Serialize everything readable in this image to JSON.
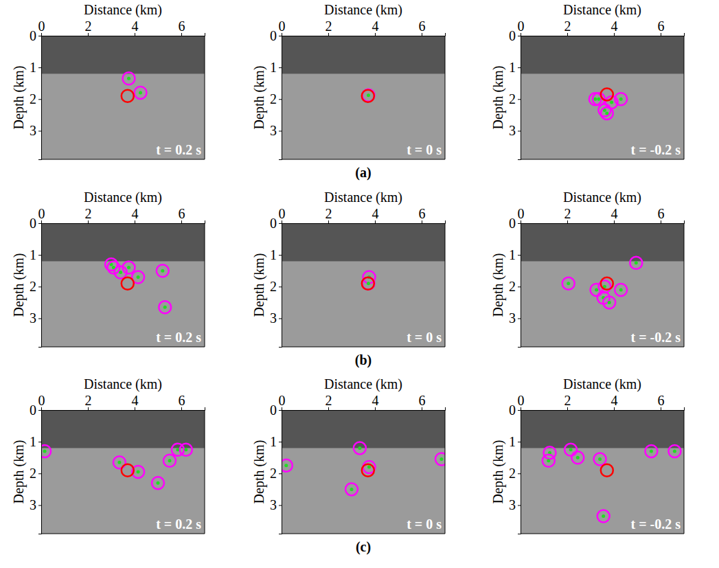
{
  "chart_data": [
    {
      "type": "scatter",
      "xlabel": "Distance (km)",
      "ylabel": "Depth (km)",
      "xlim": [
        0,
        7
      ],
      "ylim": [
        0,
        3.9
      ],
      "xticks": [
        0,
        2,
        4,
        6
      ],
      "yticks": [
        0,
        1,
        2,
        3
      ],
      "mute_depth": 1.2,
      "annotation": "t = 0.2 s",
      "series": [
        {
          "color": "#ff00ff",
          "marker": "ring-dot",
          "x": [
            3.75,
            4.25
          ],
          "y": [
            1.35,
            1.8
          ]
        },
        {
          "color": "#ff0000",
          "marker": "ring",
          "x": [
            3.7
          ],
          "y": [
            1.9
          ]
        }
      ]
    },
    {
      "type": "scatter",
      "xlabel": "Distance (km)",
      "ylabel": "Depth (km)",
      "xlim": [
        0,
        7
      ],
      "ylim": [
        0,
        3.9
      ],
      "xticks": [
        0,
        2,
        4,
        6
      ],
      "yticks": [
        0,
        1,
        2,
        3
      ],
      "mute_depth": 1.2,
      "annotation": "t = 0 s",
      "caption": "(a)",
      "series": [
        {
          "color": "#ff00ff",
          "marker": "ring-dot",
          "x": [
            3.72
          ],
          "y": [
            1.88
          ]
        },
        {
          "color": "#ff0000",
          "marker": "ring",
          "x": [
            3.7
          ],
          "y": [
            1.9
          ]
        }
      ]
    },
    {
      "type": "scatter",
      "xlabel": "Distance (km)",
      "ylabel": "Depth (km)",
      "xlim": [
        0,
        7
      ],
      "ylim": [
        0,
        3.9
      ],
      "xticks": [
        0,
        2,
        4,
        6
      ],
      "yticks": [
        0,
        1,
        2,
        3
      ],
      "mute_depth": 1.2,
      "annotation": "t = -0.2 s",
      "series": [
        {
          "color": "#ff00ff",
          "marker": "ring-dot",
          "x": [
            3.2,
            3.35,
            3.6,
            3.7,
            4.3,
            3.9
          ],
          "y": [
            2.0,
            2.0,
            2.35,
            2.45,
            2.0,
            2.1
          ]
        },
        {
          "color": "#ff0000",
          "marker": "ring",
          "x": [
            3.7
          ],
          "y": [
            1.85
          ]
        }
      ]
    },
    {
      "type": "scatter",
      "xlabel": "Distance (km)",
      "ylabel": "Depth (km)",
      "xlim": [
        0,
        7
      ],
      "ylim": [
        0,
        3.9
      ],
      "xticks": [
        0,
        2,
        4,
        6
      ],
      "yticks": [
        0,
        1,
        2,
        3
      ],
      "mute_depth": 1.2,
      "annotation": "t = 0.2 s",
      "series": [
        {
          "color": "#ff00ff",
          "marker": "ring-dot",
          "x": [
            3.0,
            3.1,
            3.4,
            3.75,
            4.15,
            5.2,
            5.3
          ],
          "y": [
            1.3,
            1.4,
            1.55,
            1.4,
            1.7,
            1.5,
            2.65
          ]
        },
        {
          "color": "#ff0000",
          "marker": "ring",
          "x": [
            3.7
          ],
          "y": [
            1.9
          ]
        }
      ]
    },
    {
      "type": "scatter",
      "xlabel": "Distance (km)",
      "ylabel": "Depth (km)",
      "xlim": [
        0,
        7
      ],
      "ylim": [
        0,
        3.9
      ],
      "xticks": [
        0,
        2,
        4,
        6
      ],
      "yticks": [
        0,
        1,
        2,
        3
      ],
      "mute_depth": 1.2,
      "annotation": "t = 0 s",
      "caption": "(b)",
      "series": [
        {
          "color": "#ff00ff",
          "marker": "ring-dot",
          "x": [
            3.75,
            3.72
          ],
          "y": [
            1.7,
            1.9
          ]
        },
        {
          "color": "#ff0000",
          "marker": "ring",
          "x": [
            3.7
          ],
          "y": [
            1.9
          ]
        }
      ]
    },
    {
      "type": "scatter",
      "xlabel": "Distance (km)",
      "ylabel": "Depth (km)",
      "xlim": [
        0,
        7
      ],
      "ylim": [
        0,
        3.9
      ],
      "xticks": [
        0,
        2,
        4,
        6
      ],
      "yticks": [
        0,
        1,
        2,
        3
      ],
      "mute_depth": 1.2,
      "annotation": "t = -0.2 s",
      "series": [
        {
          "color": "#ff00ff",
          "marker": "ring-dot",
          "x": [
            2.05,
            3.25,
            3.55,
            3.8,
            4.3,
            4.95,
            3.6
          ],
          "y": [
            1.9,
            2.1,
            2.35,
            2.5,
            2.1,
            1.25,
            2.0
          ]
        },
        {
          "color": "#ff0000",
          "marker": "ring",
          "x": [
            3.7
          ],
          "y": [
            1.9
          ]
        }
      ]
    },
    {
      "type": "scatter",
      "xlabel": "Distance (km)",
      "ylabel": "Depth (km)",
      "xlim": [
        0,
        7
      ],
      "ylim": [
        0,
        3.9
      ],
      "xticks": [
        0,
        2,
        4,
        6
      ],
      "yticks": [
        0,
        1,
        2,
        3
      ],
      "mute_depth": 1.2,
      "annotation": "t = 0.2 s",
      "series": [
        {
          "color": "#ff00ff",
          "marker": "ring-dot",
          "x": [
            0.15,
            3.35,
            4.15,
            5.0,
            5.5,
            5.85,
            6.2
          ],
          "y": [
            1.3,
            1.65,
            1.95,
            2.3,
            1.6,
            1.25,
            1.25
          ]
        },
        {
          "color": "#ff0000",
          "marker": "ring",
          "x": [
            3.7
          ],
          "y": [
            1.9
          ]
        }
      ]
    },
    {
      "type": "scatter",
      "xlabel": "Distance (km)",
      "ylabel": "Depth (km)",
      "xlim": [
        0,
        7
      ],
      "ylim": [
        0,
        3.9
      ],
      "xticks": [
        0,
        2,
        4,
        6
      ],
      "yticks": [
        0,
        1,
        2,
        3
      ],
      "mute_depth": 1.2,
      "annotation": "t = 0 s",
      "caption": "(c)",
      "series": [
        {
          "color": "#ff00ff",
          "marker": "ring-dot",
          "x": [
            0.2,
            3.0,
            3.35,
            3.75,
            6.85
          ],
          "y": [
            1.75,
            2.5,
            1.2,
            1.8,
            1.55
          ]
        },
        {
          "color": "#ff0000",
          "marker": "ring",
          "x": [
            3.7
          ],
          "y": [
            1.9
          ]
        }
      ]
    },
    {
      "type": "scatter",
      "xlabel": "Distance (km)",
      "ylabel": "Depth (km)",
      "xlim": [
        0,
        7
      ],
      "ylim": [
        0,
        3.9
      ],
      "xticks": [
        0,
        2,
        4,
        6
      ],
      "yticks": [
        0,
        1,
        2,
        3
      ],
      "mute_depth": 1.2,
      "annotation": "t = -0.2 s",
      "series": [
        {
          "color": "#ff00ff",
          "marker": "ring-dot",
          "x": [
            1.25,
            1.2,
            2.15,
            2.45,
            3.4,
            3.55,
            5.6,
            6.6
          ],
          "y": [
            1.35,
            1.6,
            1.25,
            1.5,
            1.55,
            3.35,
            1.3,
            1.3
          ]
        },
        {
          "color": "#ff0000",
          "marker": "ring",
          "x": [
            3.7
          ],
          "y": [
            1.9
          ]
        }
      ]
    }
  ]
}
